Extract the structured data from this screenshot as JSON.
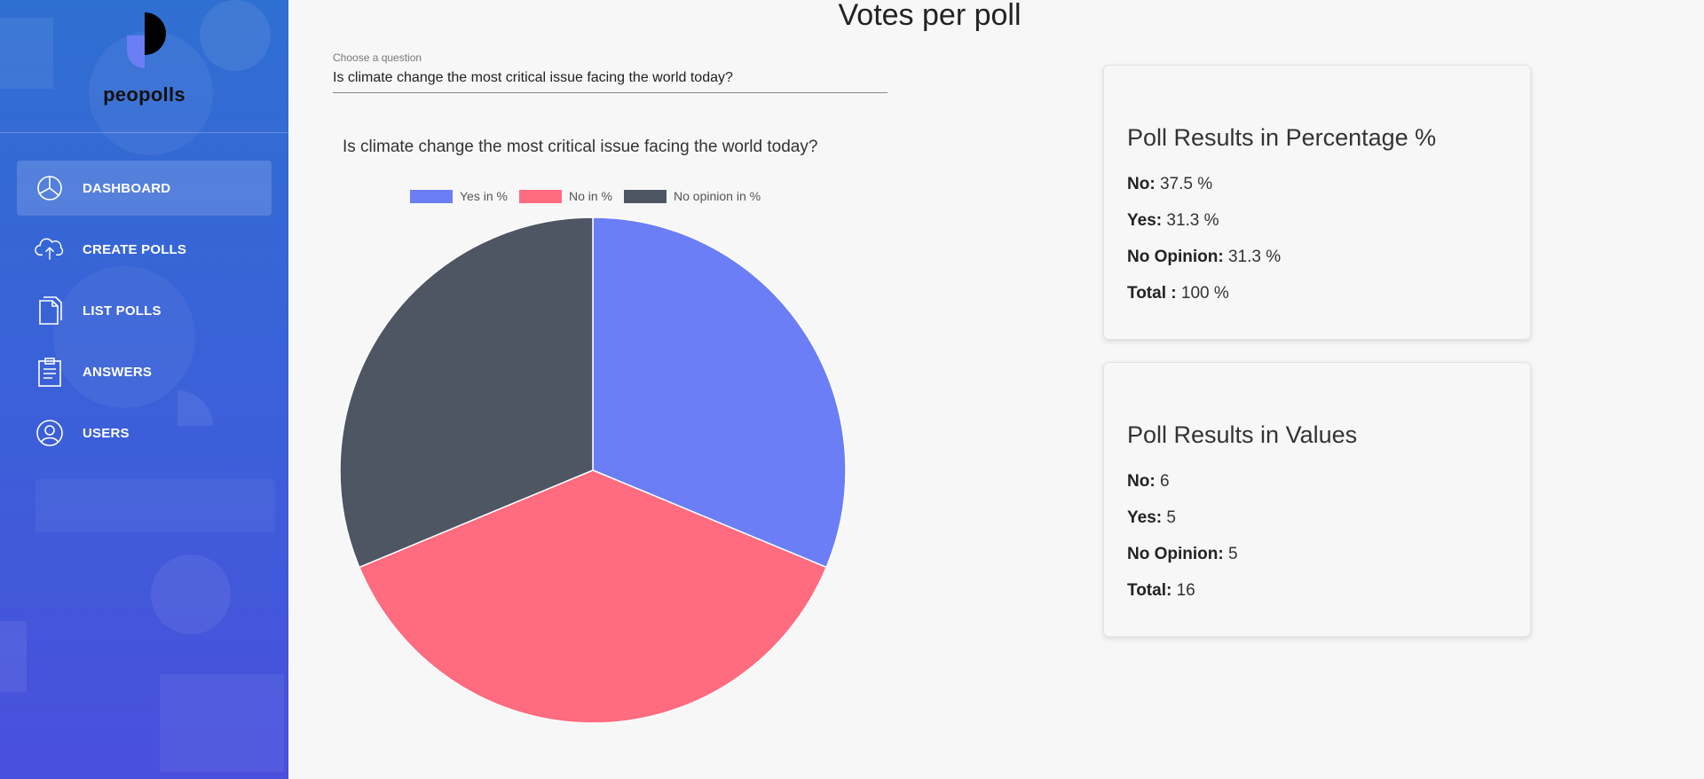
{
  "sidebar": {
    "logo_text": "peopolls",
    "items": [
      {
        "label": "DASHBOARD",
        "icon": "pie-chart-icon",
        "active": true
      },
      {
        "label": "CREATE POLLS",
        "icon": "cloud-upload-icon",
        "active": false
      },
      {
        "label": "LIST POLLS",
        "icon": "documents-icon",
        "active": false
      },
      {
        "label": "ANSWERS",
        "icon": "clipboard-icon",
        "active": false
      },
      {
        "label": "USERS",
        "icon": "user-icon",
        "active": false
      }
    ]
  },
  "main": {
    "title": "Votes per poll",
    "question_select": {
      "caption": "Choose a question",
      "value": "Is climate change the most critical issue facing the world today?"
    }
  },
  "chart_data": {
    "type": "pie",
    "title": "Is climate change the most critical issue facing the world today?",
    "legend_position": "top",
    "labels": [
      "Yes in %",
      "No in %",
      "No opinion in %"
    ],
    "values": [
      31.3,
      37.5,
      31.3
    ],
    "colors": [
      "#6b7ef5",
      "#ff6b7f",
      "#4e5563"
    ]
  },
  "cards": {
    "percentage": {
      "title": "Poll Results in Percentage %",
      "rows": [
        {
          "label": "No:",
          "value": "37.5 %"
        },
        {
          "label": "Yes:",
          "value": "31.3 %"
        },
        {
          "label": "No Opinion:",
          "value": "31.3 %"
        },
        {
          "label": "Total :",
          "value": "100 %"
        }
      ]
    },
    "values": {
      "title": "Poll Results in Values",
      "rows": [
        {
          "label": "No:",
          "value": "6"
        },
        {
          "label": "Yes:",
          "value": "5"
        },
        {
          "label": "No Opinion:",
          "value": "5"
        },
        {
          "label": "Total:",
          "value": "16"
        }
      ]
    }
  }
}
